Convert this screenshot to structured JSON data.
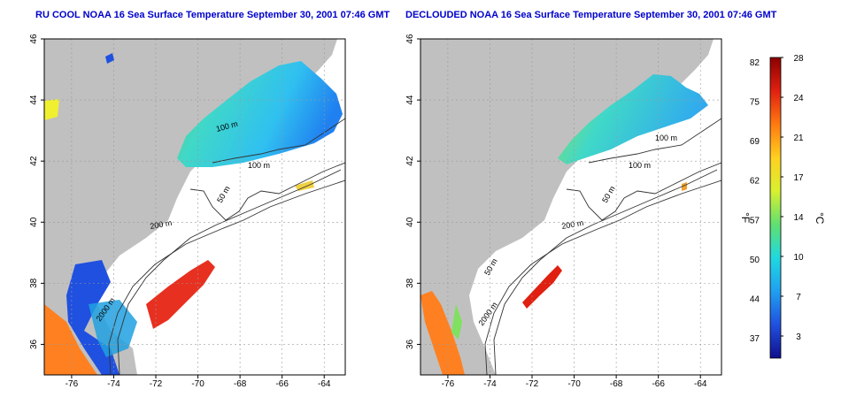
{
  "panels": [
    {
      "title": "RU COOL NOAA 16 Sea Surface Temperature September 30, 2001 07:46 GMT",
      "contour_labels": [
        "100 m",
        "100 m",
        "50 m",
        "200 m",
        "2000 m"
      ]
    },
    {
      "title": "DECLOUDED NOAA 16 Sea Surface Temperature September 30, 2001 07:46 GMT",
      "contour_labels": [
        "100 m",
        "100 m",
        "50 m",
        "200 m",
        "50 m",
        "2000 m"
      ]
    }
  ],
  "axes": {
    "x_ticks": [
      "-76",
      "-74",
      "-72",
      "-70",
      "-68",
      "-66",
      "-64"
    ],
    "y_ticks": [
      "46",
      "44",
      "42",
      "40",
      "38",
      "36"
    ],
    "lon_range": [
      -77.3,
      -63.0
    ],
    "lat_range": [
      35.0,
      46.0
    ]
  },
  "colorbar": {
    "f_label": "°F",
    "c_label": "°C",
    "f_ticks": [
      "82",
      "75",
      "69",
      "62",
      "57",
      "50",
      "44",
      "37"
    ],
    "c_ticks": [
      "28",
      "24",
      "21",
      "17",
      "14",
      "10",
      "7",
      "3"
    ],
    "colors": [
      "#8b0000",
      "#e02010",
      "#ff7a10",
      "#ffd020",
      "#d8f030",
      "#60e070",
      "#20d8e0",
      "#20a0f0",
      "#2050e0",
      "#10108c"
    ]
  },
  "colors": {
    "land": "#c0c0c0",
    "ocean_missing": "#ffffff",
    "title": "#0000cc"
  }
}
